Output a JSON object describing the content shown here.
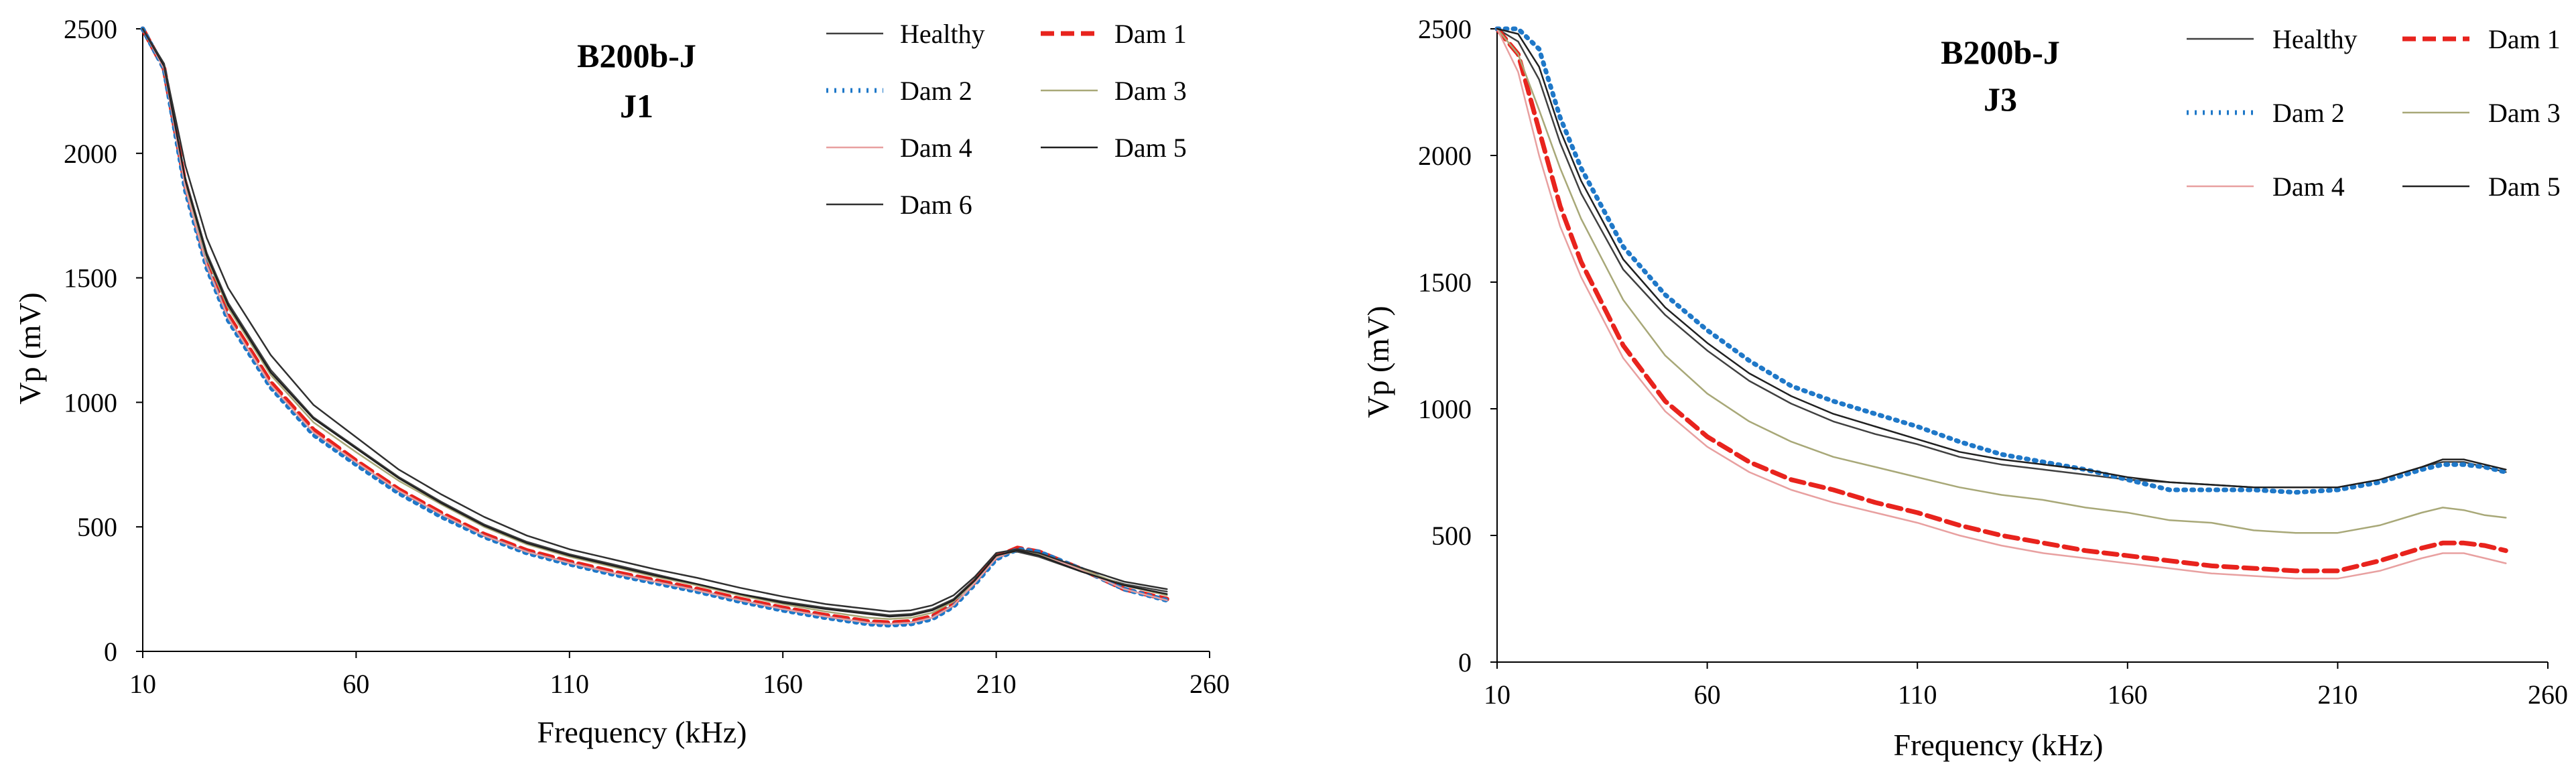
{
  "chart_data": [
    {
      "type": "line",
      "title": "B200b-J",
      "subtitle": "J1",
      "xlabel": "Frequency  (kHz)",
      "ylabel": "Vp (mV)",
      "xlim": [
        10,
        260
      ],
      "ylim": [
        0,
        2500
      ],
      "xticks": [
        10,
        60,
        110,
        160,
        210,
        260
      ],
      "yticks": [
        0,
        500,
        1000,
        1500,
        2000,
        2500
      ],
      "grid": false,
      "legend_position": "top-right",
      "series": [
        {
          "name": "Healthy",
          "color": "#404040",
          "style": "solid",
          "x": [
            10,
            15,
            20,
            25,
            30,
            40,
            50,
            60,
            70,
            80,
            90,
            100,
            110,
            120,
            130,
            140,
            150,
            160,
            170,
            180,
            185,
            190,
            195,
            200,
            205,
            210,
            215,
            220,
            230,
            240,
            250
          ],
          "y": [
            2500,
            2350,
            1900,
            1600,
            1400,
            1130,
            940,
            820,
            700,
            600,
            510,
            440,
            390,
            350,
            310,
            270,
            230,
            200,
            175,
            155,
            145,
            150,
            170,
            210,
            290,
            390,
            400,
            380,
            320,
            270,
            240
          ]
        },
        {
          "name": "Dam 1",
          "color": "#e8231d",
          "style": "dashed",
          "x": [
            10,
            15,
            20,
            25,
            30,
            40,
            50,
            60,
            70,
            80,
            90,
            100,
            110,
            120,
            130,
            140,
            150,
            160,
            170,
            180,
            185,
            190,
            195,
            200,
            205,
            210,
            215,
            220,
            230,
            240,
            250
          ],
          "y": [
            2500,
            2340,
            1870,
            1560,
            1350,
            1080,
            890,
            765,
            650,
            555,
            470,
            405,
            360,
            320,
            285,
            250,
            210,
            175,
            145,
            120,
            115,
            120,
            140,
            190,
            280,
            380,
            415,
            400,
            330,
            250,
            210
          ]
        },
        {
          "name": "Dam 2",
          "color": "#1f78c8",
          "style": "dotted",
          "x": [
            10,
            15,
            20,
            25,
            30,
            40,
            50,
            60,
            70,
            80,
            90,
            100,
            110,
            120,
            130,
            140,
            150,
            160,
            170,
            180,
            185,
            190,
            195,
            200,
            205,
            210,
            215,
            220,
            230,
            240,
            250
          ],
          "y": [
            2500,
            2340,
            1850,
            1540,
            1330,
            1060,
            870,
            750,
            635,
            540,
            460,
            395,
            350,
            310,
            275,
            240,
            200,
            165,
            135,
            110,
            105,
            110,
            130,
            180,
            270,
            370,
            410,
            400,
            330,
            250,
            205
          ]
        },
        {
          "name": "Dam 3",
          "color": "#a8a878",
          "style": "solid",
          "x": [
            10,
            15,
            20,
            25,
            30,
            40,
            50,
            60,
            70,
            80,
            90,
            100,
            110,
            120,
            130,
            140,
            150,
            160,
            170,
            180,
            185,
            190,
            195,
            200,
            205,
            210,
            215,
            220,
            230,
            240,
            250
          ],
          "y": [
            2500,
            2345,
            1880,
            1580,
            1380,
            1110,
            920,
            800,
            685,
            590,
            500,
            430,
            380,
            340,
            300,
            265,
            225,
            190,
            160,
            135,
            130,
            135,
            155,
            200,
            280,
            380,
            405,
            390,
            330,
            265,
            225
          ]
        },
        {
          "name": "Dam 4",
          "color": "#e8a0a0",
          "style": "solid",
          "x": [
            10,
            15,
            20,
            25,
            30,
            40,
            50,
            60,
            70,
            80,
            90,
            100,
            110,
            120,
            130,
            140,
            150,
            160,
            170,
            180,
            185,
            190,
            195,
            200,
            205,
            210,
            215,
            220,
            230,
            240,
            250
          ],
          "y": [
            2500,
            2340,
            1860,
            1550,
            1340,
            1070,
            880,
            760,
            645,
            550,
            465,
            400,
            355,
            315,
            280,
            245,
            205,
            170,
            140,
            115,
            110,
            115,
            135,
            185,
            275,
            375,
            410,
            395,
            325,
            250,
            205
          ]
        },
        {
          "name": "Dam 5",
          "color": "#202020",
          "style": "solid",
          "x": [
            10,
            15,
            20,
            25,
            30,
            40,
            50,
            60,
            70,
            80,
            90,
            100,
            110,
            120,
            130,
            140,
            150,
            160,
            170,
            180,
            185,
            190,
            195,
            200,
            205,
            210,
            215,
            220,
            230,
            240,
            250
          ],
          "y": [
            2500,
            2350,
            1890,
            1590,
            1390,
            1120,
            935,
            815,
            695,
            595,
            505,
            435,
            385,
            345,
            305,
            270,
            230,
            195,
            170,
            150,
            140,
            145,
            165,
            205,
            285,
            385,
            405,
            385,
            320,
            265,
            230
          ]
        },
        {
          "name": "Dam 6",
          "color": "#303030",
          "style": "solid",
          "x": [
            10,
            15,
            20,
            25,
            30,
            40,
            50,
            60,
            70,
            80,
            90,
            100,
            110,
            120,
            130,
            140,
            150,
            160,
            170,
            180,
            185,
            190,
            195,
            200,
            205,
            210,
            215,
            220,
            230,
            240,
            250
          ],
          "y": [
            2500,
            2360,
            1950,
            1660,
            1460,
            1190,
            990,
            860,
            730,
            630,
            540,
            465,
            410,
            370,
            330,
            295,
            255,
            220,
            190,
            170,
            160,
            165,
            185,
            225,
            300,
            395,
            410,
            395,
            335,
            280,
            250
          ]
        }
      ]
    },
    {
      "type": "line",
      "title": "B200b-J",
      "subtitle": "J3",
      "xlabel": "Frequency  (kHz)",
      "ylabel": "Vp (mV)",
      "xlim": [
        10,
        260
      ],
      "ylim": [
        0,
        2500
      ],
      "xticks": [
        10,
        60,
        110,
        160,
        210,
        260
      ],
      "yticks": [
        0,
        500,
        1000,
        1500,
        2000,
        2500
      ],
      "grid": false,
      "legend_position": "top-right",
      "series": [
        {
          "name": "Healthy",
          "color": "#404040",
          "style": "solid",
          "x": [
            10,
            15,
            20,
            25,
            30,
            40,
            50,
            60,
            70,
            80,
            90,
            100,
            110,
            120,
            130,
            140,
            150,
            160,
            170,
            180,
            190,
            200,
            210,
            220,
            230,
            235,
            240,
            245,
            250
          ],
          "y": [
            2500,
            2450,
            2300,
            2050,
            1850,
            1550,
            1370,
            1230,
            1110,
            1020,
            950,
            900,
            860,
            810,
            780,
            760,
            740,
            720,
            710,
            700,
            690,
            690,
            690,
            720,
            770,
            790,
            790,
            770,
            750
          ]
        },
        {
          "name": "Dam 1",
          "color": "#e8231d",
          "style": "dashed",
          "x": [
            10,
            15,
            20,
            25,
            30,
            40,
            50,
            60,
            70,
            80,
            90,
            100,
            110,
            120,
            130,
            140,
            150,
            160,
            170,
            180,
            190,
            200,
            210,
            220,
            230,
            235,
            240,
            245,
            250
          ],
          "y": [
            2500,
            2400,
            2100,
            1800,
            1580,
            1250,
            1030,
            890,
            790,
            720,
            680,
            630,
            590,
            540,
            500,
            470,
            440,
            420,
            400,
            380,
            370,
            360,
            360,
            400,
            450,
            470,
            470,
            460,
            440
          ]
        },
        {
          "name": "Dam 2",
          "color": "#1f78c8",
          "style": "dotted",
          "x": [
            10,
            15,
            20,
            25,
            30,
            40,
            50,
            60,
            70,
            80,
            90,
            100,
            110,
            120,
            130,
            140,
            150,
            160,
            170,
            180,
            190,
            200,
            210,
            220,
            230,
            235,
            240,
            245,
            250
          ],
          "y": [
            2500,
            2500,
            2420,
            2150,
            1950,
            1640,
            1450,
            1310,
            1190,
            1090,
            1030,
            980,
            930,
            870,
            820,
            790,
            760,
            720,
            680,
            680,
            680,
            670,
            680,
            710,
            760,
            780,
            780,
            770,
            750
          ]
        },
        {
          "name": "Dam 3",
          "color": "#a8a878",
          "style": "solid",
          "x": [
            10,
            15,
            20,
            25,
            30,
            40,
            50,
            60,
            70,
            80,
            90,
            100,
            110,
            120,
            130,
            140,
            150,
            160,
            170,
            180,
            190,
            200,
            210,
            220,
            230,
            235,
            240,
            245,
            250
          ],
          "y": [
            2500,
            2400,
            2180,
            1950,
            1750,
            1430,
            1210,
            1060,
            950,
            870,
            810,
            770,
            730,
            690,
            660,
            640,
            610,
            590,
            560,
            550,
            520,
            510,
            510,
            540,
            590,
            610,
            600,
            580,
            570
          ]
        },
        {
          "name": "Dam 4",
          "color": "#e8a0a0",
          "style": "solid",
          "x": [
            10,
            15,
            20,
            25,
            30,
            40,
            50,
            60,
            70,
            80,
            90,
            100,
            110,
            120,
            130,
            140,
            150,
            160,
            170,
            180,
            190,
            200,
            210,
            220,
            230,
            235,
            240,
            245,
            250
          ],
          "y": [
            2500,
            2330,
            2000,
            1720,
            1520,
            1200,
            990,
            850,
            750,
            680,
            630,
            590,
            550,
            500,
            460,
            430,
            410,
            390,
            370,
            350,
            340,
            330,
            330,
            360,
            410,
            430,
            430,
            410,
            390
          ]
        },
        {
          "name": "Dam 5",
          "color": "#202020",
          "style": "solid",
          "x": [
            10,
            15,
            20,
            25,
            30,
            40,
            50,
            60,
            70,
            80,
            90,
            100,
            110,
            120,
            130,
            140,
            150,
            160,
            170,
            180,
            190,
            200,
            210,
            220,
            230,
            235,
            240,
            245,
            250
          ],
          "y": [
            2500,
            2480,
            2350,
            2100,
            1900,
            1590,
            1400,
            1260,
            1140,
            1050,
            980,
            930,
            880,
            830,
            800,
            780,
            760,
            730,
            710,
            700,
            690,
            690,
            690,
            720,
            770,
            800,
            800,
            780,
            760
          ]
        }
      ]
    }
  ]
}
